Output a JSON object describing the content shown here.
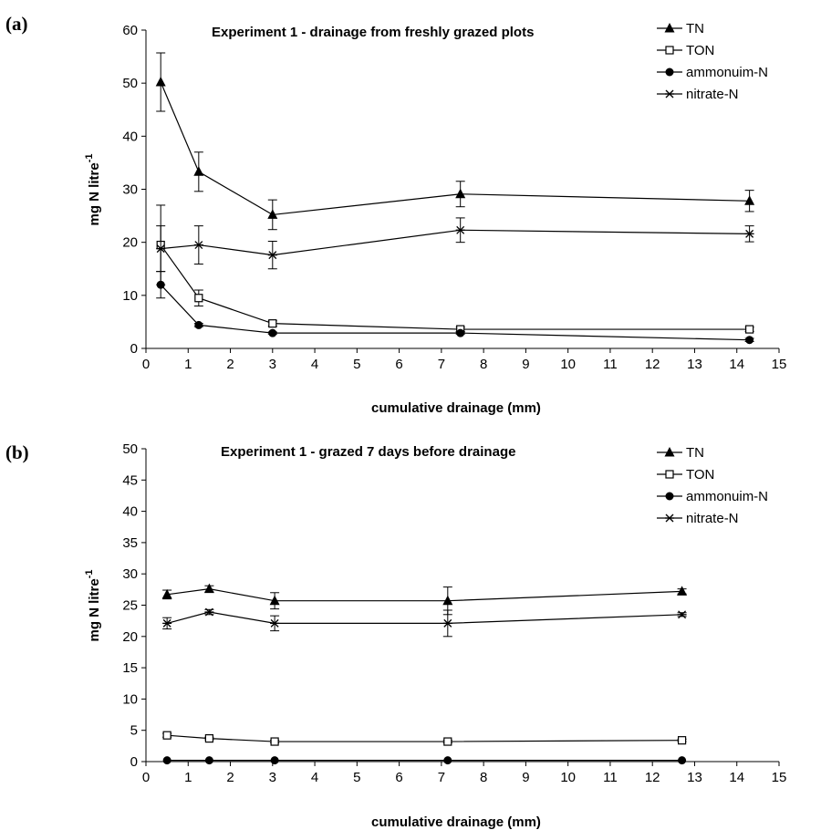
{
  "chart_data": [
    {
      "type": "line",
      "panel_label": "(a)",
      "title": "Experiment 1 - drainage from freshly grazed plots",
      "xlabel": "cumulative drainage (mm)",
      "ylabel_main": "mg N litre",
      "ylabel_sup": "-1",
      "xlim": [
        0,
        15
      ],
      "ylim": [
        0,
        60
      ],
      "xticks": [
        0,
        1,
        2,
        3,
        4,
        5,
        6,
        7,
        8,
        9,
        10,
        11,
        12,
        13,
        14,
        15
      ],
      "yticks": [
        0,
        10,
        20,
        30,
        40,
        50,
        60
      ],
      "grid": false,
      "legend_position": "top-right",
      "series": [
        {
          "name": "TN",
          "marker": "triangle",
          "x": [
            0.35,
            1.25,
            3.0,
            7.45,
            14.3
          ],
          "y": [
            50.2,
            33.3,
            25.2,
            29.1,
            27.8
          ],
          "err": [
            5.5,
            3.7,
            2.8,
            2.4,
            2.0
          ]
        },
        {
          "name": "TON",
          "marker": "square",
          "x": [
            0.35,
            1.25,
            3.0,
            7.45,
            14.3
          ],
          "y": [
            19.5,
            9.5,
            4.7,
            3.6,
            3.6
          ],
          "err": [
            7.5,
            1.5,
            0.5,
            0.4,
            0.4
          ]
        },
        {
          "name": "ammonuim-N",
          "marker": "circle",
          "x": [
            0.35,
            1.25,
            3.0,
            7.45,
            14.3
          ],
          "y": [
            12.0,
            4.4,
            2.9,
            2.9,
            1.6
          ],
          "err": [
            2.5,
            0.3,
            0.2,
            0.2,
            0.3
          ]
        },
        {
          "name": "nitrate-N",
          "marker": "star",
          "x": [
            0.35,
            1.25,
            3.0,
            7.45,
            14.3
          ],
          "y": [
            18.8,
            19.5,
            17.6,
            22.3,
            21.6
          ],
          "err": [
            4.3,
            3.6,
            2.6,
            2.3,
            1.5
          ]
        }
      ]
    },
    {
      "type": "line",
      "panel_label": "(b)",
      "title": "Experiment 1 - grazed 7 days before drainage",
      "xlabel": "cumulative drainage (mm)",
      "ylabel_main": "mg N litre",
      "ylabel_sup": "-1",
      "xlim": [
        0,
        15
      ],
      "ylim": [
        0,
        50
      ],
      "xticks": [
        0,
        1,
        2,
        3,
        4,
        5,
        6,
        7,
        8,
        9,
        10,
        11,
        12,
        13,
        14,
        15
      ],
      "yticks": [
        0,
        5,
        10,
        15,
        20,
        25,
        30,
        35,
        40,
        45,
        50
      ],
      "grid": false,
      "legend_position": "top-right",
      "series": [
        {
          "name": "TN",
          "marker": "triangle",
          "x": [
            0.5,
            1.5,
            3.05,
            7.15,
            12.7
          ],
          "y": [
            26.7,
            27.6,
            25.7,
            25.7,
            27.2
          ],
          "err": [
            0.7,
            0.5,
            1.3,
            2.2,
            0.4
          ]
        },
        {
          "name": "TON",
          "marker": "square",
          "x": [
            0.5,
            1.5,
            3.05,
            7.15,
            12.7
          ],
          "y": [
            4.2,
            3.7,
            3.2,
            3.2,
            3.4
          ],
          "err": [
            0.3,
            0.2,
            0.2,
            0.2,
            0.2
          ]
        },
        {
          "name": "ammonuim-N",
          "marker": "circle",
          "x": [
            0.5,
            1.5,
            3.05,
            7.15,
            12.7
          ],
          "y": [
            0.2,
            0.2,
            0.2,
            0.2,
            0.2
          ],
          "err": [
            0,
            0,
            0,
            0,
            0
          ]
        },
        {
          "name": "nitrate-N",
          "marker": "star",
          "x": [
            0.5,
            1.5,
            3.05,
            7.15,
            12.7
          ],
          "y": [
            22.1,
            23.9,
            22.1,
            22.1,
            23.5
          ],
          "err": [
            0.9,
            0.4,
            1.2,
            2.1,
            0.3
          ]
        }
      ]
    }
  ]
}
